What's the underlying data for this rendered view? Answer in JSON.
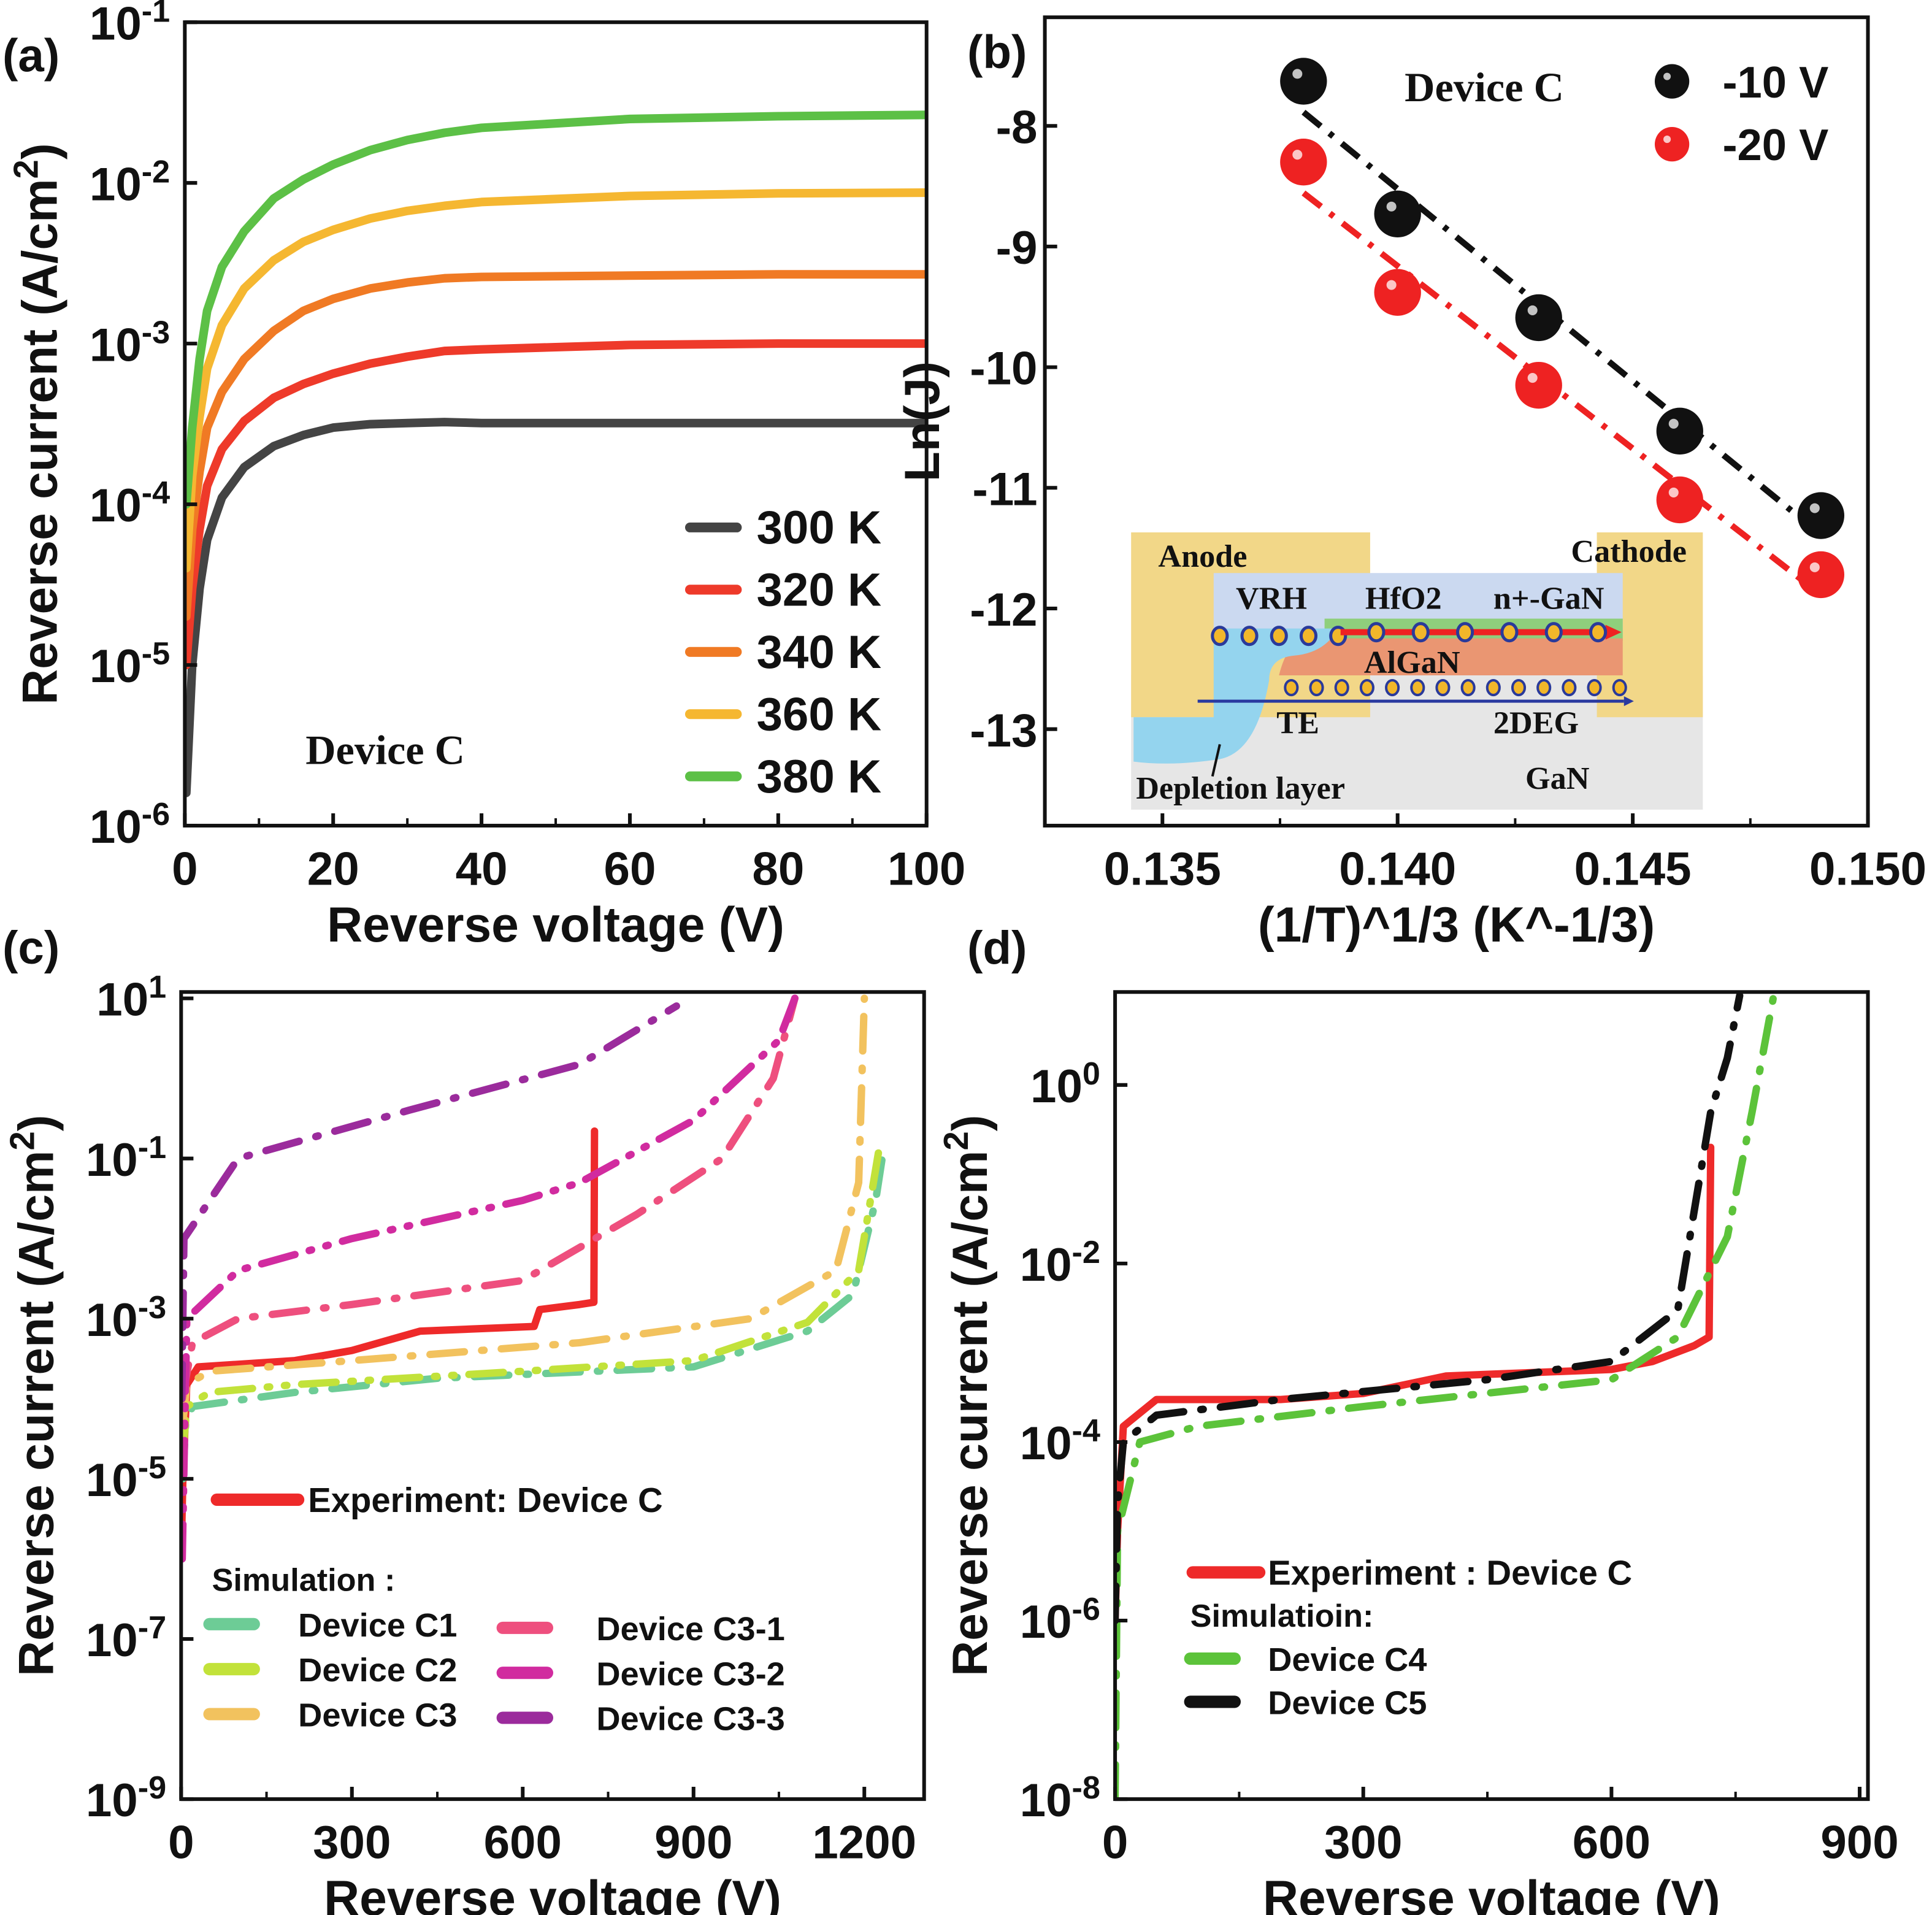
{
  "panel_labels": [
    "(a)",
    "(b)",
    "(c)",
    "(d)"
  ],
  "chart_data": [
    {
      "type": "line",
      "panel": "(a)",
      "xlabel": "Reverse voltage (V)",
      "ylabel": "Reverse current (A/cm^2)",
      "xlim": [
        0,
        100
      ],
      "ylim": [
        1e-06,
        0.1
      ],
      "yscale": "log",
      "xticks": [
        0,
        20,
        40,
        60,
        80,
        100
      ],
      "yticks": [
        -6,
        -5,
        -4,
        -3,
        -2,
        -1
      ],
      "annotation": "Device C",
      "legend_position": "bottom-right",
      "x": [
        0.2,
        1,
        2,
        3,
        5,
        8,
        12,
        16,
        20,
        25,
        30,
        35,
        40,
        60,
        80,
        100
      ],
      "series": [
        {
          "name": "300 K",
          "color": "#444444",
          "values": [
            1.6e-06,
            1e-05,
            3e-05,
            6e-05,
            0.00011,
            0.00017,
            0.00023,
            0.00027,
            0.0003,
            0.000315,
            0.00032,
            0.000325,
            0.00032,
            0.00032,
            0.00032,
            0.00032
          ]
        },
        {
          "name": "320 K",
          "color": "#ee3a2a",
          "values": [
            1e-05,
            3e-05,
            7e-05,
            0.00013,
            0.00022,
            0.00033,
            0.00046,
            0.00056,
            0.00065,
            0.00075,
            0.00083,
            0.0009,
            0.00092,
            0.00098,
            0.001,
            0.001
          ]
        },
        {
          "name": "340 K",
          "color": "#f07a24",
          "values": [
            2e-05,
            7e-05,
            0.00016,
            0.0003,
            0.0005,
            0.0008,
            0.0012,
            0.0016,
            0.0019,
            0.0022,
            0.0024,
            0.00255,
            0.0026,
            0.00265,
            0.0027,
            0.0027
          ]
        },
        {
          "name": "360 K",
          "color": "#f5b731",
          "values": [
            4e-05,
            0.00015,
            0.00035,
            0.0007,
            0.0013,
            0.0022,
            0.0033,
            0.0043,
            0.0051,
            0.006,
            0.0067,
            0.0072,
            0.0076,
            0.0083,
            0.0086,
            0.0087
          ]
        },
        {
          "name": "380 K",
          "color": "#5cc046",
          "values": [
            0.0001,
            0.0003,
            0.0008,
            0.0016,
            0.003,
            0.005,
            0.008,
            0.0105,
            0.013,
            0.016,
            0.0185,
            0.0205,
            0.022,
            0.025,
            0.026,
            0.0265
          ]
        }
      ]
    },
    {
      "type": "scatter",
      "panel": "(b)",
      "xlabel": "(1/T)^1/3 (K^-1/3)",
      "ylabel": "Ln(J)",
      "xlim": [
        0.1325,
        0.15
      ],
      "ylim": [
        -13.8,
        -7.1
      ],
      "xticks": [
        0.135,
        0.14,
        0.145,
        0.15
      ],
      "xtick_labels": [
        "0.135",
        "0.140",
        "0.145",
        "0.150"
      ],
      "yticks": [
        -8,
        -9,
        -10,
        -11,
        -12,
        -13
      ],
      "annotation": "Device C",
      "legend_position": "top-right",
      "x": [
        0.138,
        0.14,
        0.143,
        0.146,
        0.149
      ],
      "series": [
        {
          "name": "-10 V",
          "color": "#111111",
          "values": [
            -7.63,
            -8.73,
            -9.59,
            -10.53,
            -11.23
          ]
        },
        {
          "name": "-20 V",
          "color": "#ee2222",
          "values": [
            -8.3,
            -9.38,
            -10.15,
            -11.1,
            -11.72
          ]
        }
      ],
      "inset": {
        "anode": "Anode",
        "cathode": "Cathode",
        "vrh": "VRH",
        "hfo2": "HfO2",
        "ngan": "n+-GaN",
        "algan": "AlGaN",
        "te": "TE",
        "twodeg": "2DEG",
        "depletion": "Depletion layer",
        "gan": "GaN"
      }
    },
    {
      "type": "line",
      "panel": "(c)",
      "xlabel": "Reverse voltage (V)",
      "ylabel": "Reverse current (A/cm^2)",
      "xlim": [
        0,
        1305
      ],
      "ylim": [
        1e-09,
        12
      ],
      "yscale": "log",
      "xticks": [
        0,
        300,
        600,
        900,
        1200
      ],
      "yticks": [
        -9,
        -7,
        -5,
        -3,
        -1,
        1
      ],
      "legend_position": "bottom-left",
      "legend_experiment": "Experiment: Device C",
      "legend_simulation": "Simulation :",
      "series": [
        {
          "name": "Experiment: Device C",
          "color": "#ee2a2a",
          "style": "solid",
          "x": [
            0,
            3,
            10,
            30,
            200,
            300,
            420,
            620,
            630,
            700,
            725,
            726
          ],
          "values": [
            1e-06,
            1e-05,
            0.00015,
            0.00025,
            0.0003,
            0.0004,
            0.0007,
            0.0008,
            0.0013,
            0.0015,
            0.0016,
            0.22
          ]
        },
        {
          "name": "Device C1",
          "color": "#6dcc96",
          "style": "dashdot",
          "x": [
            3,
            8,
            20,
            200,
            450,
            900,
            1100,
            1180,
            1220,
            1235
          ],
          "values": [
            1e-05,
            5e-05,
            8e-05,
            0.00012,
            0.00018,
            0.00025,
            0.0007,
            0.002,
            0.03,
            0.15
          ]
        },
        {
          "name": "Device C2",
          "color": "#c2e23a",
          "style": "dashdotdot",
          "x": [
            3,
            10,
            50,
            200,
            600,
            900,
            1100,
            1190,
            1225
          ],
          "values": [
            2e-05,
            8e-05,
            0.00012,
            0.00015,
            0.00022,
            0.0003,
            0.0009,
            0.004,
            0.12
          ]
        },
        {
          "name": "Device C3",
          "color": "#f2c25e",
          "style": "dashdot",
          "x": [
            3,
            10,
            50,
            300,
            700,
            1000,
            1150,
            1190,
            1200
          ],
          "values": [
            5e-05,
            0.00015,
            0.00022,
            0.0003,
            0.0005,
            0.001,
            0.004,
            0.05,
            10
          ]
        },
        {
          "name": "Device C3-1",
          "color": "#ee4f7e",
          "style": "dashdot",
          "x": [
            2,
            20,
            100,
            300,
            600,
            800,
            950,
            1040,
            1078
          ],
          "values": [
            0.0001,
            0.0005,
            0.001,
            0.0015,
            0.003,
            0.02,
            0.1,
            1,
            10
          ]
        },
        {
          "name": "Device C3-2",
          "color": "#d12b9f",
          "style": "dashdotdot",
          "x": [
            2,
            10,
            100,
            300,
            600,
            700,
            900,
            1050,
            1078
          ],
          "values": [
            1e-06,
            0.001,
            0.004,
            0.01,
            0.03,
            0.05,
            0.3,
            3,
            10
          ]
        },
        {
          "name": "Device C3-3",
          "color": "#9b2b9c",
          "style": "dashdot",
          "x": [
            1,
            5,
            100,
            400,
            700,
            870
          ],
          "values": [
            0.0001,
            0.01,
            0.1,
            0.4,
            1.5,
            8
          ]
        }
      ]
    },
    {
      "type": "line",
      "panel": "(d)",
      "xlabel": "Reverse voltage (V)",
      "ylabel": "Reverse current (A/cm^2)",
      "xlim": [
        0,
        910
      ],
      "ylim": [
        1e-08,
        11
      ],
      "yscale": "log",
      "xticks": [
        0,
        300,
        600,
        900
      ],
      "yticks": [
        -8,
        -6,
        -4,
        -2,
        0
      ],
      "legend_position": "bottom-left",
      "legend_experiment": "Experiment : Device C",
      "legend_simulation": "Simulatioin:",
      "series": [
        {
          "name": "Experiment : Device C",
          "color": "#ee2a2a",
          "style": "solid",
          "x": [
            0,
            3,
            10,
            50,
            200,
            300,
            400,
            600,
            650,
            700,
            718,
            720
          ],
          "values": [
            1e-06,
            1e-05,
            0.00015,
            0.0003,
            0.0003,
            0.00035,
            0.00055,
            0.00065,
            0.0008,
            0.0012,
            0.0015,
            0.2
          ]
        },
        {
          "name": "Device C4",
          "color": "#5cc33a",
          "style": "dashdot",
          "x": [
            0,
            3,
            30,
            100,
            300,
            600,
            680,
            740,
            770,
            796
          ],
          "values": [
            1e-08,
            1e-05,
            0.0001,
            0.00015,
            0.00025,
            0.0005,
            0.0015,
            0.02,
            0.5,
            10
          ]
        },
        {
          "name": "Device C5",
          "color": "#111111",
          "style": "dashdot",
          "x": [
            0,
            3,
            10,
            50,
            200,
            450,
            600,
            680,
            720,
            740,
            755
          ],
          "values": [
            1e-06,
            2e-05,
            0.0001,
            0.0002,
            0.0003,
            0.0005,
            0.0008,
            0.003,
            0.5,
            2,
            10
          ]
        }
      ]
    }
  ]
}
